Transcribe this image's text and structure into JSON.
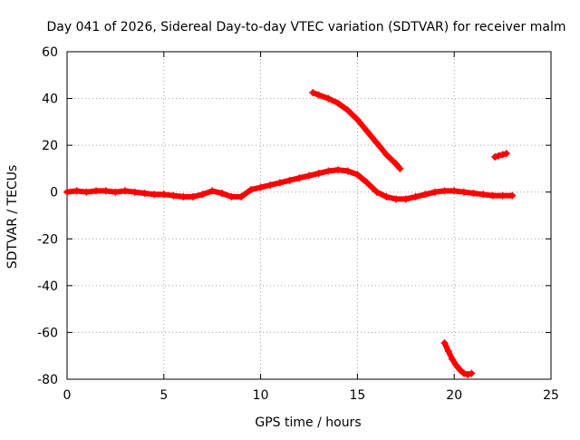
{
  "chart_data": {
    "type": "scatter",
    "title": "Day 041 of 2026, Sidereal Day-to-day VTEC variation (SDTVAR) for receiver malm",
    "xlabel": "GPS time / hours",
    "ylabel": "SDTVAR / TECUs",
    "xlim": [
      0,
      25
    ],
    "ylim": [
      -80,
      60
    ],
    "xticks": [
      0,
      5,
      10,
      15,
      20,
      25
    ],
    "yticks": [
      -80,
      -60,
      -40,
      -20,
      0,
      20,
      40,
      60
    ],
    "xtick_labels": [
      "0",
      "5",
      "10",
      "15",
      "20",
      "25"
    ],
    "ytick_labels": [
      "-80",
      "-60",
      "-40",
      "-20",
      "0",
      "20",
      "40",
      "60"
    ],
    "grid": true,
    "legend": "none",
    "marker": "plus",
    "color": "#ff0000",
    "series": [
      {
        "name": "main-trace",
        "x": [
          0.0,
          0.5,
          1.0,
          1.5,
          2.0,
          2.5,
          3.0,
          3.5,
          4.0,
          4.5,
          5.0,
          5.5,
          6.0,
          6.5,
          7.0,
          7.5,
          8.0,
          8.5,
          9.0,
          9.5,
          10.0,
          10.5,
          11.0,
          11.5,
          12.0,
          12.5,
          13.0,
          13.5,
          14.0,
          14.5,
          15.0,
          15.5,
          16.0,
          16.5,
          17.0,
          17.5,
          18.0,
          18.5,
          19.0,
          19.5,
          20.0,
          20.5,
          21.0,
          21.5,
          22.0,
          22.5,
          23.0
        ],
        "y": [
          0.0,
          0.5,
          0.0,
          0.5,
          0.5,
          0.0,
          0.5,
          0.0,
          -0.5,
          -1.0,
          -1.0,
          -1.5,
          -2.0,
          -2.0,
          -1.0,
          0.5,
          -0.5,
          -2.0,
          -2.0,
          1.0,
          2.0,
          3.0,
          4.0,
          5.0,
          6.0,
          7.0,
          8.0,
          9.0,
          9.5,
          9.0,
          7.5,
          4.0,
          0.0,
          -2.0,
          -3.0,
          -3.0,
          -2.0,
          -1.0,
          0.0,
          0.5,
          0.5,
          0.0,
          -0.5,
          -1.0,
          -1.5,
          -1.5,
          -1.5
        ]
      },
      {
        "name": "upper-arc",
        "x": [
          12.7,
          13.0,
          13.5,
          14.0,
          14.5,
          15.0,
          15.5,
          16.0,
          16.5,
          17.0,
          17.2
        ],
        "y": [
          42.5,
          41.5,
          40.0,
          38.0,
          35.0,
          31.0,
          26.0,
          21.0,
          16.0,
          12.0,
          10.0
        ]
      },
      {
        "name": "lower-arc",
        "x": [
          19.5,
          19.7,
          19.9,
          20.1,
          20.3,
          20.5,
          20.7,
          20.9
        ],
        "y": [
          -64.5,
          -68.0,
          -71.5,
          -74.0,
          -76.0,
          -77.5,
          -78.0,
          -77.5
        ]
      },
      {
        "name": "late-segment",
        "x": [
          22.1,
          22.3,
          22.5,
          22.7
        ],
        "y": [
          15.0,
          15.5,
          16.0,
          16.5
        ]
      }
    ]
  }
}
